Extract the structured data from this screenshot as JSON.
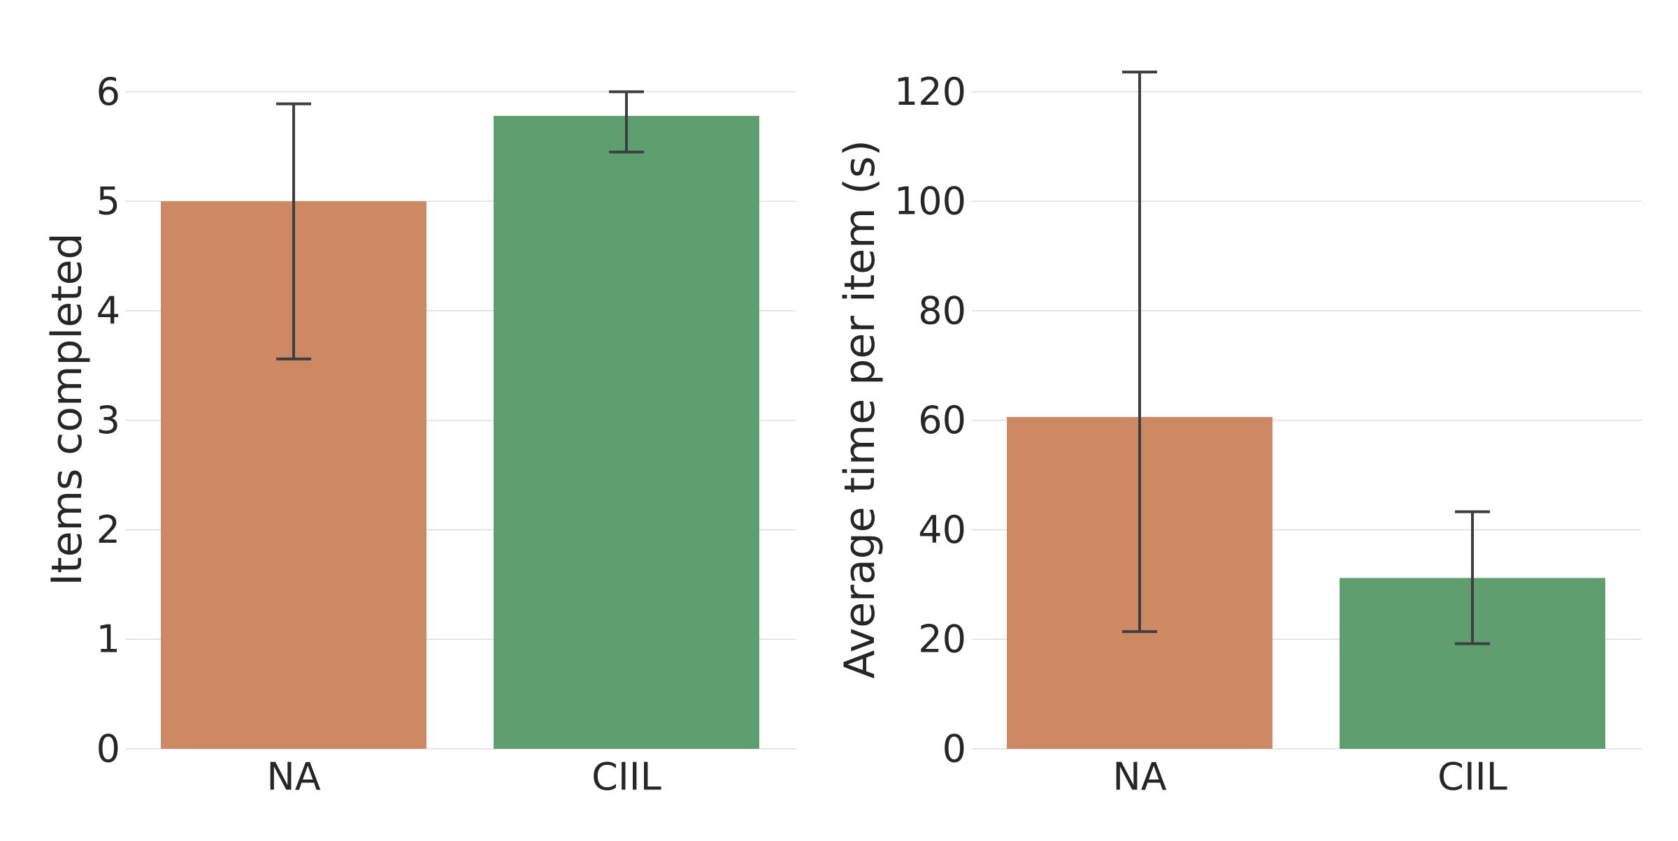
{
  "chart_data": [
    {
      "type": "bar",
      "title": "",
      "xlabel": "",
      "ylabel": "Items completed",
      "categories": [
        "NA",
        "CIIL"
      ],
      "values": [
        5.0,
        5.78
      ],
      "error_low": [
        3.56,
        5.45
      ],
      "error_high": [
        5.89,
        6.0
      ],
      "colors": [
        "#cd8963",
        "#5f9e6e"
      ],
      "ylim": [
        0,
        6.2
      ],
      "yticks": [
        0,
        1,
        2,
        3,
        4,
        5,
        6
      ],
      "ytick_labels": [
        "0",
        "1",
        "2",
        "3",
        "4",
        "5",
        "6"
      ],
      "grid": "horizontal"
    },
    {
      "type": "bar",
      "title": "",
      "xlabel": "",
      "ylabel": "Average time per item (s)",
      "categories": [
        "NA",
        "CIIL"
      ],
      "values": [
        60.6,
        31.2
      ],
      "error_low": [
        21.4,
        19.2
      ],
      "error_high": [
        123.6,
        43.3
      ],
      "colors": [
        "#cd8963",
        "#5f9e6e"
      ],
      "ylim": [
        0,
        124
      ],
      "yticks": [
        0,
        20,
        40,
        60,
        80,
        100,
        120
      ],
      "ytick_labels": [
        "0",
        "20",
        "40",
        "60",
        "80",
        "100",
        "120"
      ],
      "grid": "horizontal"
    }
  ]
}
